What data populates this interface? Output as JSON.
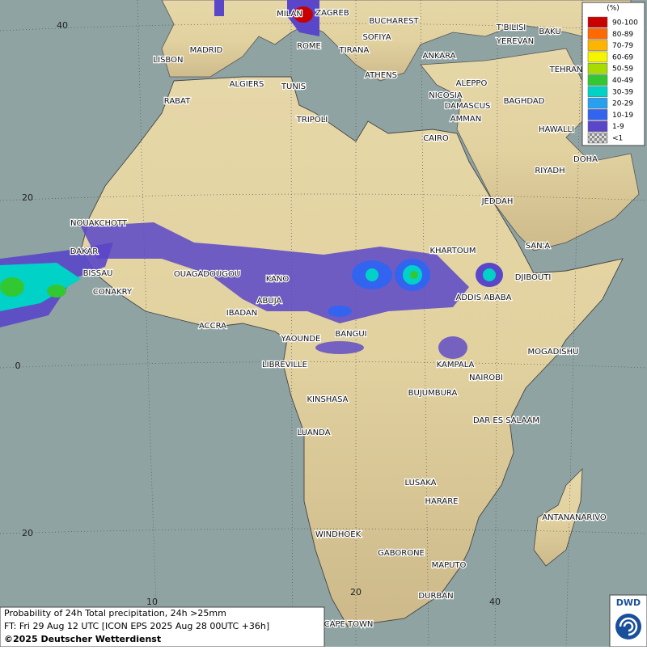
{
  "legend": {
    "title": "(%)",
    "items": [
      {
        "label": "90-100",
        "color": "#c80000"
      },
      {
        "label": "80-89",
        "color": "#ff6a00"
      },
      {
        "label": "70-79",
        "color": "#ffb400"
      },
      {
        "label": "60-69",
        "color": "#f5f500"
      },
      {
        "label": "50-59",
        "color": "#a8dc00"
      },
      {
        "label": "40-49",
        "color": "#32c832"
      },
      {
        "label": "30-39",
        "color": "#00d2c8"
      },
      {
        "label": "20-29",
        "color": "#28a0f0"
      },
      {
        "label": "10-19",
        "color": "#3264f0"
      },
      {
        "label": "1-9",
        "color": "#5a46c8"
      },
      {
        "label": "<1",
        "color": "#b4b4b4"
      }
    ]
  },
  "cities": [
    "MILAN",
    "ZAGREB",
    "BUCHAREST",
    "MADRID",
    "SOFIYA",
    "ROME",
    "TIRANA",
    "ANKARA",
    "T'BILISI",
    "BAKU",
    "YEREVAN",
    "TEHRAN",
    "LISBON",
    "ALGIERS",
    "TUNIS",
    "ATHENS",
    "ALEPPO",
    "RABAT",
    "NICOSIA",
    "BAGHDAD",
    "DAMASCUS",
    "AMMAN",
    "TRIPOLI",
    "HAWALLI",
    "CAIRO",
    "DOHA",
    "RIYADH",
    "JEDDAH",
    "NOUAKCHOTT",
    "SAN'A",
    "KHARTOUM",
    "DAKAR",
    "BISSAU",
    "OUAGADOUGOU",
    "KANO",
    "DJIBOUTI",
    "CONAKRY",
    "ABUJA",
    "ADDIS ABABA",
    "IBADAN",
    "ACCRA",
    "YAOUNDE",
    "BANGUI",
    "MOGADISHU",
    "LIBREVILLE",
    "KAMPALA",
    "NAIROBI",
    "BUJUMBURA",
    "KINSHASA",
    "DAR ES SALAAM",
    "LUANDA",
    "LUSAKA",
    "HARARE",
    "ANTANANARIVO",
    "WINDHOEK",
    "GABORONE",
    "MAPUTO",
    "DURBAN",
    "CAPE TOWN"
  ],
  "latitude_labels": [
    "40",
    "20",
    "0",
    "20"
  ],
  "longitude_labels": [
    "10",
    "20",
    "40"
  ],
  "caption": [
    "Probability of 24h Total precipitation, 24h >25mm",
    "FT: Fri 29 Aug 12 UTC [ICON EPS 2025 Aug 28 00UTC +36h]",
    "©2025 Deutscher Wetterdienst"
  ],
  "logo": "DWD"
}
